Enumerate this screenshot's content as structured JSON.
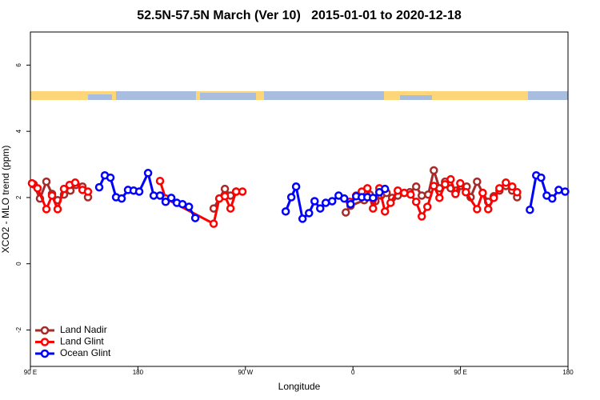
{
  "chart_data": {
    "type": "line",
    "title": "52.5N-57.5N March (Ver 10)   2015-01-01 to 2020-12-18",
    "x_label": "Longitude",
    "y_label": "XCO2 - MLO trend (ppm)",
    "xlim": [
      90,
      540
    ],
    "ylim": [
      -3.1,
      7.0
    ],
    "xticks": [
      {
        "value": 90,
        "label": "90 E"
      },
      180,
      {
        "value": 270,
        "label": "90 W"
      },
      {
        "value": 360,
        "label": "0"
      },
      {
        "value": 450,
        "label": "90 E"
      },
      {
        "value": 540,
        "label": "180"
      }
    ],
    "yticks": [
      -2,
      0,
      2,
      4,
      6
    ],
    "legend": "bottom-left",
    "series": [
      {
        "name": "Land Nadir",
        "color": "#a52a2a",
        "x": [
          92.7,
          98.0,
          103.4,
          108.1,
          112.8,
          118.1,
          123.5,
          128.2,
          133.6,
          138.2,
          190,
          243.4,
          248.1,
          252.8,
          257.5,
          262.2,
          300,
          354.0,
          358.0,
          369.4,
          374.1,
          378.8,
          383.5,
          388.2,
          392.8,
          397.5,
          402.9,
          407.6,
          412.9,
          417.6,
          423.0,
          427.7,
          432.4,
          437.1,
          441.8,
          446.4,
          450.5,
          455.2,
          458.5,
          463.9,
          468.6,
          473.2,
          477.9,
          482.6,
          488.0,
          493.3,
          497.4
        ],
        "values": [
          2.4,
          1.97,
          2.48,
          2.11,
          1.92,
          2.09,
          2.21,
          2.38,
          2.33,
          2.01,
          null,
          1.67,
          1.97,
          2.26,
          2.06,
          2.18,
          null,
          1.55,
          1.75,
          1.92,
          2.09,
          1.89,
          2.06,
          2.14,
          1.99,
          2.06,
          2.14,
          2.16,
          2.33,
          2.06,
          2.09,
          2.82,
          2.28,
          2.48,
          2.28,
          2.21,
          2.35,
          2.33,
          2.01,
          2.48,
          2.14,
          1.87,
          2.04,
          2.21,
          2.35,
          2.21,
          2.01
        ]
      },
      {
        "name": "Land Glint",
        "color": "#ff0000",
        "x": [
          91.3,
          96.0,
          103.4,
          108.1,
          112.8,
          118.1,
          122.8,
          127.5,
          133.6,
          138.2,
          170,
          198.5,
          203.2,
          243.4,
          248.1,
          252.8,
          257.5,
          262.2,
          267.5,
          310,
          357.3,
          362.7,
          367.4,
          372.1,
          376.8,
          382.1,
          386.8,
          391.5,
          397.5,
          402.9,
          408.3,
          412.9,
          417.6,
          422.3,
          427.7,
          432.4,
          437.1,
          441.8,
          445.8,
          449.8,
          454.5,
          463.9,
          468.6,
          473.2,
          477.9,
          482.6,
          488.0,
          493.3,
          497.4
        ],
        "values": [
          2.43,
          2.28,
          1.65,
          2.06,
          1.65,
          2.26,
          2.38,
          2.45,
          2.23,
          2.18,
          null,
          2.5,
          1.97,
          1.21,
          1.97,
          2.04,
          1.67,
          2.18,
          2.18,
          null,
          1.87,
          2.06,
          2.18,
          2.28,
          1.67,
          2.28,
          1.58,
          1.84,
          2.21,
          2.14,
          2.09,
          1.87,
          1.43,
          1.72,
          2.35,
          1.99,
          2.4,
          2.55,
          2.11,
          2.43,
          2.16,
          1.65,
          2.14,
          1.65,
          1.99,
          2.28,
          2.45,
          2.33,
          2.16
        ]
      },
      {
        "name": "Ocean Glint",
        "color": "#0000ff",
        "x": [
          147.6,
          152.3,
          157.0,
          161.7,
          166.4,
          171.7,
          176.4,
          181.1,
          188.5,
          193.2,
          198.5,
          203.2,
          207.9,
          212.6,
          217.3,
          222.7,
          228.0,
          270,
          303.7,
          308.4,
          312.4,
          317.8,
          323.2,
          327.9,
          332.6,
          337.2,
          342.6,
          348.0,
          352.7,
          358.0,
          362.7,
          367.4,
          372.1,
          376.8,
          382.1,
          386.8,
          500,
          508.1,
          513.4,
          517.5,
          522.2,
          526.8,
          532.2,
          537.6
        ],
        "values": [
          2.31,
          2.67,
          2.6,
          2.01,
          1.97,
          2.23,
          2.21,
          2.18,
          2.74,
          2.06,
          2.06,
          1.87,
          1.99,
          1.84,
          1.8,
          1.72,
          1.38,
          null,
          1.58,
          2.01,
          2.33,
          1.36,
          1.53,
          1.89,
          1.67,
          1.84,
          1.89,
          2.06,
          1.97,
          1.8,
          2.04,
          2.01,
          2.01,
          1.99,
          2.16,
          2.26,
          null,
          1.63,
          2.67,
          2.6,
          2.06,
          1.97,
          2.23,
          2.18
        ]
      }
    ]
  }
}
